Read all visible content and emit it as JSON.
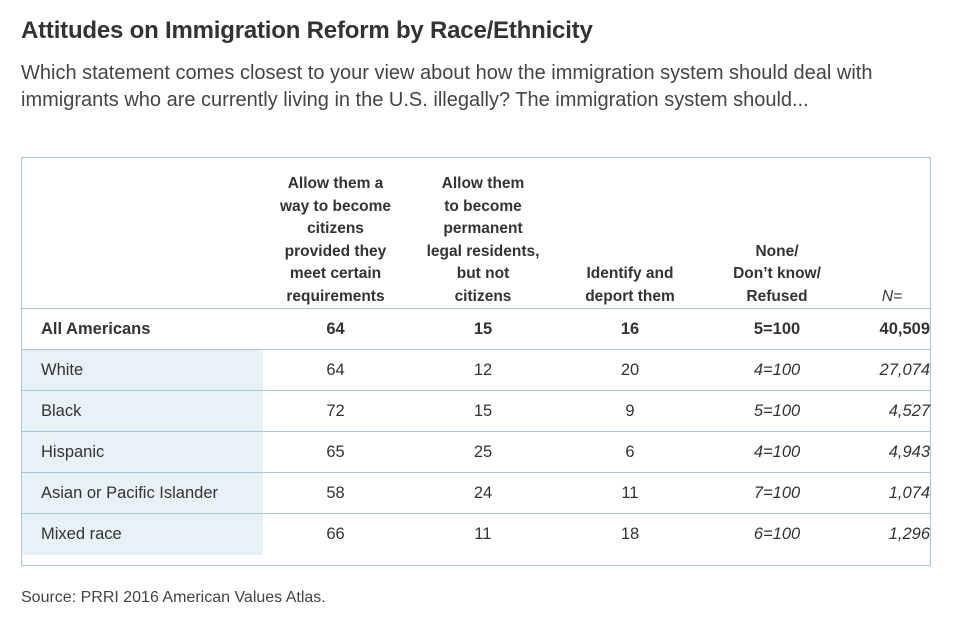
{
  "title": "Attitudes on Immigration Reform by Race/Ethnicity",
  "subtitle": "Which statement comes closest to your view about how the immigration system should deal with immigrants who are currently living in the U.S. illegally? The immigration system should...",
  "colors": {
    "frame_border": "#a9c4d3",
    "row_divider": "#a9c4d3",
    "label_shade": "#e8f1f6",
    "text": "#333333"
  },
  "chart_data": {
    "type": "table",
    "columns": [
      {
        "lines": [
          "Allow them a",
          "way to become",
          "citizens",
          "provided they",
          "meet certain",
          "requirements"
        ]
      },
      {
        "lines": [
          "Allow them",
          "to become",
          "permanent",
          "legal residents,",
          "but not",
          "citizens"
        ]
      },
      {
        "lines": [
          "Identify and",
          "deport them"
        ]
      },
      {
        "lines": [
          "None/",
          "Don’t know/",
          "Refused"
        ]
      },
      {
        "lines": [
          "N="
        ]
      }
    ],
    "rows": [
      {
        "label": "All Americans",
        "values": [
          "64",
          "15",
          "16",
          "5=100",
          "40,509"
        ]
      },
      {
        "label": "White",
        "values": [
          "64",
          "12",
          "20",
          "4=100",
          "27,074"
        ]
      },
      {
        "label": "Black",
        "values": [
          "72",
          "15",
          "9",
          "5=100",
          "4,527"
        ]
      },
      {
        "label": "Hispanic",
        "values": [
          "65",
          "25",
          "6",
          "4=100",
          "4,943"
        ]
      },
      {
        "label": "Asian or Pacific Islander",
        "values": [
          "58",
          "24",
          "11",
          "7=100",
          "1,074"
        ]
      },
      {
        "label": "Mixed race",
        "values": [
          "66",
          "11",
          "18",
          "6=100",
          "1,296"
        ]
      }
    ]
  },
  "source": "Source: PRRI 2016 American Values Atlas."
}
